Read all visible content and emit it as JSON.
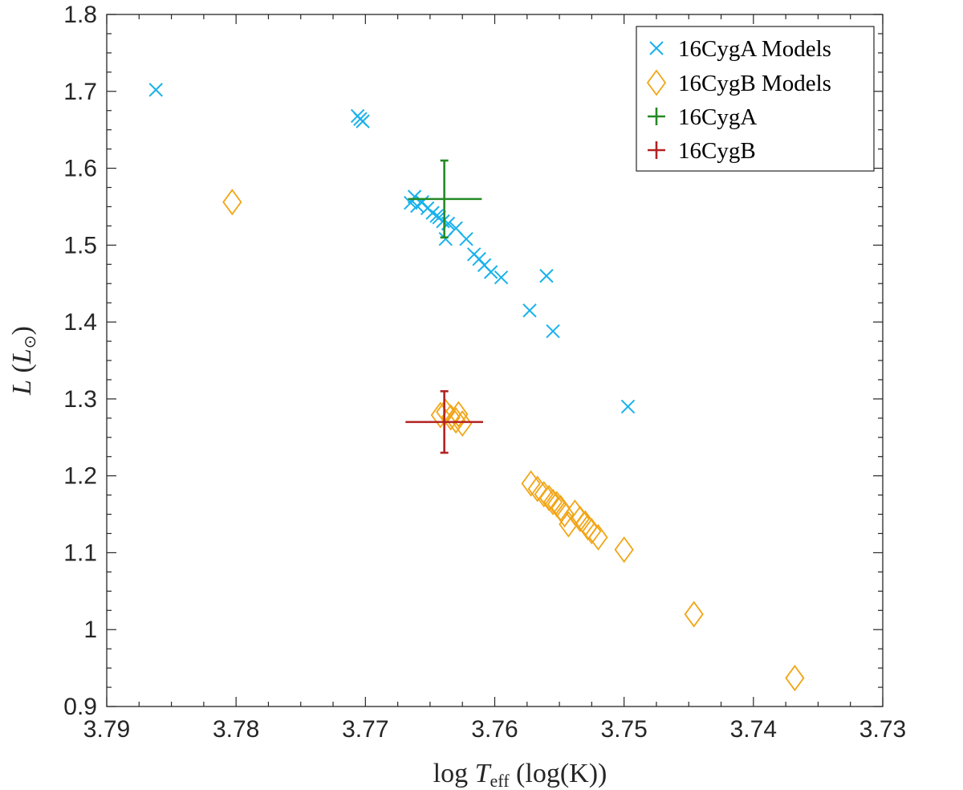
{
  "chart_data": {
    "type": "scatter",
    "title": "",
    "xlabel": "log T_eff (log(K))",
    "xlabel_parts": {
      "pre": "log ",
      "var": "T",
      "sub": "eff",
      "post": " (log(K))"
    },
    "ylabel": "L (L⊙)",
    "ylabel_parts": {
      "var": "L",
      "open": " (",
      "inner": "L",
      "sub": "⊙",
      "close": ")"
    },
    "xlim": [
      3.79,
      3.73
    ],
    "ylim": [
      0.9,
      1.8
    ],
    "x_reversed": true,
    "xticks": [
      "3.79",
      "3.78",
      "3.77",
      "3.76",
      "3.75",
      "3.74",
      "3.73"
    ],
    "yticks": [
      "0.9",
      "1",
      "1.1",
      "1.2",
      "1.3",
      "1.4",
      "1.5",
      "1.6",
      "1.7",
      "1.8"
    ],
    "grid": false,
    "legend_position": "top-right",
    "series": [
      {
        "name": "16CygA Models",
        "marker": "x",
        "color": "#1ab2ec",
        "points": [
          [
            3.7862,
            1.702
          ],
          [
            3.7706,
            1.668
          ],
          [
            3.7704,
            1.664
          ],
          [
            3.7702,
            1.661
          ],
          [
            3.7665,
            1.555
          ],
          [
            3.7662,
            1.563
          ],
          [
            3.766,
            1.551
          ],
          [
            3.7656,
            1.556
          ],
          [
            3.7652,
            1.548
          ],
          [
            3.7648,
            1.542
          ],
          [
            3.7645,
            1.538
          ],
          [
            3.7643,
            1.536
          ],
          [
            3.764,
            1.531
          ],
          [
            3.7638,
            1.508
          ],
          [
            3.7636,
            1.528
          ],
          [
            3.763,
            1.522
          ],
          [
            3.7622,
            1.508
          ],
          [
            3.7616,
            1.488
          ],
          [
            3.7612,
            1.482
          ],
          [
            3.7608,
            1.474
          ],
          [
            3.7603,
            1.465
          ],
          [
            3.7595,
            1.458
          ],
          [
            3.7573,
            1.415
          ],
          [
            3.756,
            1.46
          ],
          [
            3.7555,
            1.388
          ],
          [
            3.7497,
            1.29
          ]
        ]
      },
      {
        "name": "16CygB Models",
        "marker": "diamond",
        "color": "#f2a516",
        "points": [
          [
            3.7803,
            1.556
          ],
          [
            3.7642,
            1.279
          ],
          [
            3.7638,
            1.283
          ],
          [
            3.7634,
            1.276
          ],
          [
            3.763,
            1.272
          ],
          [
            3.7628,
            1.28
          ],
          [
            3.7625,
            1.268
          ],
          [
            3.7572,
            1.19
          ],
          [
            3.7567,
            1.183
          ],
          [
            3.7562,
            1.176
          ],
          [
            3.7558,
            1.171
          ],
          [
            3.7555,
            1.166
          ],
          [
            3.7552,
            1.163
          ],
          [
            3.7549,
            1.158
          ],
          [
            3.7546,
            1.15
          ],
          [
            3.7543,
            1.137
          ],
          [
            3.7538,
            1.152
          ],
          [
            3.7534,
            1.144
          ],
          [
            3.753,
            1.138
          ],
          [
            3.7528,
            1.133
          ],
          [
            3.7525,
            1.128
          ],
          [
            3.752,
            1.12
          ],
          [
            3.75,
            1.104
          ],
          [
            3.7446,
            1.02
          ],
          [
            3.7368,
            0.937
          ]
        ]
      },
      {
        "name": "16CygA",
        "marker": "errorbar",
        "color": "#258a25",
        "points": [
          [
            3.7639,
            1.56
          ]
        ],
        "x_err": [
          0.0028,
          0.0029
        ],
        "y_err": [
          0.05,
          0.05
        ]
      },
      {
        "name": "16CygB",
        "marker": "errorbar",
        "color": "#b22222",
        "points": [
          [
            3.7639,
            1.27
          ]
        ],
        "x_err": [
          0.003,
          0.003
        ],
        "y_err": [
          0.04,
          0.04
        ]
      }
    ]
  }
}
